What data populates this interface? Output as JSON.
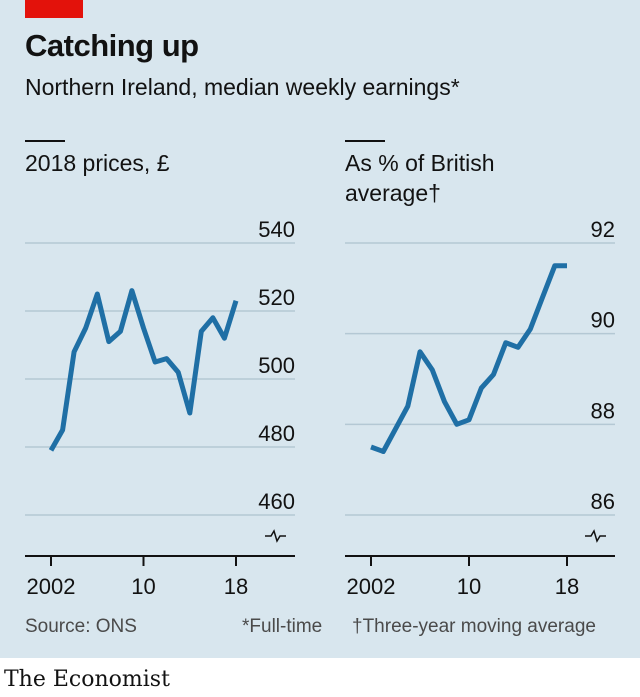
{
  "colors": {
    "background": "#d8e6ee",
    "accent_red": "#e3120b",
    "line": "#1f6fa5",
    "grid": "#b4c8d4"
  },
  "header": {
    "title": "Catching up",
    "subtitle": "Northern Ireland, median weekly earnings*"
  },
  "footer": {
    "source": "Source: ONS",
    "note_fulltime": "*Full-time",
    "note_moving": "†Three-year moving average",
    "brand": "The Economist"
  },
  "chart_data": [
    {
      "type": "line",
      "title": "2018 prices, £",
      "x": [
        2002,
        2003,
        2004,
        2005,
        2006,
        2007,
        2008,
        2009,
        2010,
        2011,
        2012,
        2013,
        2014,
        2015,
        2016,
        2017,
        2018
      ],
      "series": [
        {
          "values": [
            479,
            485,
            508,
            515,
            525,
            511,
            514,
            526,
            515,
            505,
            506,
            502,
            490,
            514,
            518,
            512,
            523
          ]
        }
      ],
      "ylim": [
        460,
        540
      ],
      "yticks": [
        "540",
        "520",
        "500",
        "480",
        "460"
      ],
      "xticks": [
        "2002",
        "10",
        "18"
      ],
      "axis_break": true,
      "grid": true
    },
    {
      "type": "line",
      "title": "As % of British average†",
      "x": [
        2002,
        2003,
        2004,
        2005,
        2006,
        2007,
        2008,
        2009,
        2010,
        2011,
        2012,
        2013,
        2014,
        2015,
        2016,
        2017,
        2018
      ],
      "series": [
        {
          "values": [
            87.5,
            87.4,
            87.9,
            88.4,
            89.6,
            89.2,
            88.5,
            88.0,
            88.1,
            88.8,
            89.1,
            89.8,
            89.7,
            90.1,
            90.8,
            91.5,
            91.5
          ]
        }
      ],
      "ylim": [
        86,
        92
      ],
      "yticks": [
        "92",
        "90",
        "88",
        "86"
      ],
      "xticks": [
        "2002",
        "10",
        "18"
      ],
      "axis_break": true,
      "grid": true
    }
  ]
}
